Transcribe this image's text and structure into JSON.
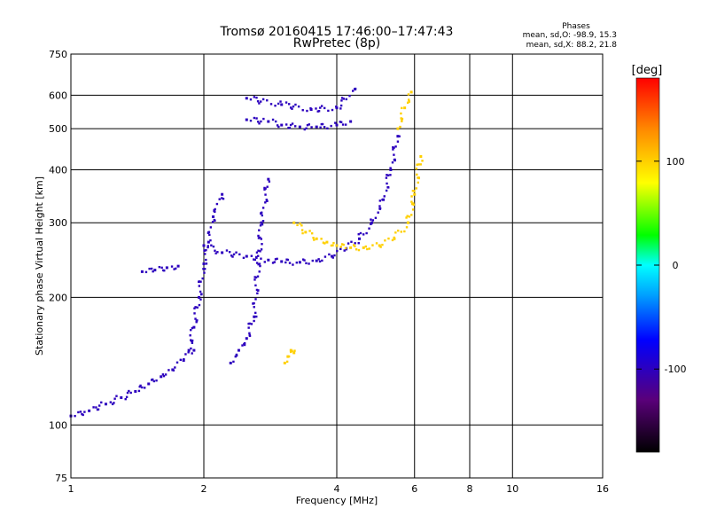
{
  "chart_data": {
    "type": "scatter",
    "title": "Tromsø 20160415 17:46:00–17:47:43",
    "subtitle": "RwPretec (8p)",
    "xlabel": "Frequency [MHz]",
    "ylabel": "Stationary phase Virtual Height [km]",
    "x_scale": "log",
    "y_scale": "log",
    "xlim": [
      1,
      16
    ],
    "ylim": [
      75,
      750
    ],
    "x_ticks": [
      1,
      2,
      4,
      6,
      8,
      10,
      16
    ],
    "y_ticks": [
      75,
      100,
      200,
      300,
      400,
      500,
      600,
      750
    ],
    "grid": true,
    "phases_info": {
      "title": "Phases",
      "line_o": "mean, sd,O: -98.9, 15.3",
      "line_x": "mean, sd,X:  88.2, 21.8"
    },
    "colorbar": {
      "label": "[deg]",
      "range": [
        -180,
        180
      ],
      "ticks": [
        "100",
        "0",
        "-100"
      ],
      "tick_values": [
        100,
        0,
        -100
      ],
      "colormap": "rainbow"
    },
    "series": [
      {
        "mode": "O",
        "color_phase": -100,
        "traces": [
          {
            "x": [
              1.0,
              1.1,
              1.2,
              1.3,
              1.4,
              1.5,
              1.6,
              1.7,
              1.8,
              1.9
            ],
            "y": [
              105,
              108,
              112,
              116,
              120,
              125,
              130,
              135,
              142,
              150
            ]
          },
          {
            "x": [
              1.85,
              1.9,
              1.95,
              2.0,
              2.05,
              2.1,
              2.2
            ],
            "y": [
              150,
              170,
              200,
              240,
              270,
              310,
              350
            ]
          },
          {
            "x": [
              2.0,
              2.2,
              2.5,
              2.8,
              3.0,
              3.3,
              3.6,
              3.9,
              4.2,
              4.5,
              4.8,
              5.1,
              5.3,
              5.5
            ],
            "y": [
              265,
              255,
              250,
              245,
              243,
              242,
              244,
              250,
              260,
              275,
              300,
              340,
              400,
              480
            ]
          },
          {
            "x": [
              2.5,
              2.8,
              3.0,
              3.3,
              3.6,
              4.0,
              4.3
            ],
            "y": [
              525,
              520,
              510,
              505,
              505,
              510,
              520
            ]
          },
          {
            "x": [
              2.5,
              3.0,
              3.5,
              4.0,
              4.4
            ],
            "y": [
              590,
              570,
              555,
              560,
              620
            ]
          },
          {
            "x": [
              1.45,
              1.55,
              1.65,
              1.75
            ],
            "y": [
              230,
              232,
              235,
              237
            ]
          },
          {
            "x": [
              2.3,
              2.4,
              2.5,
              2.6,
              2.7,
              2.8
            ],
            "y": [
              140,
              150,
              160,
              180,
              300,
              380
            ]
          }
        ]
      },
      {
        "mode": "X",
        "color_phase": 100,
        "traces": [
          {
            "x": [
              3.2,
              3.4,
              3.6,
              3.8,
              4.0,
              4.3,
              4.6,
              5.0,
              5.4,
              5.8,
              6.0,
              6.2
            ],
            "y": [
              300,
              285,
              275,
              270,
              265,
              262,
              262,
              265,
              275,
              300,
              350,
              430
            ]
          },
          {
            "x": [
              5.5,
              5.7,
              5.9
            ],
            "y": [
              500,
              560,
              610
            ]
          },
          {
            "x": [
              3.05,
              3.1,
              3.15,
              3.2
            ],
            "y": [
              140,
              145,
              150,
              148
            ]
          }
        ]
      }
    ]
  }
}
